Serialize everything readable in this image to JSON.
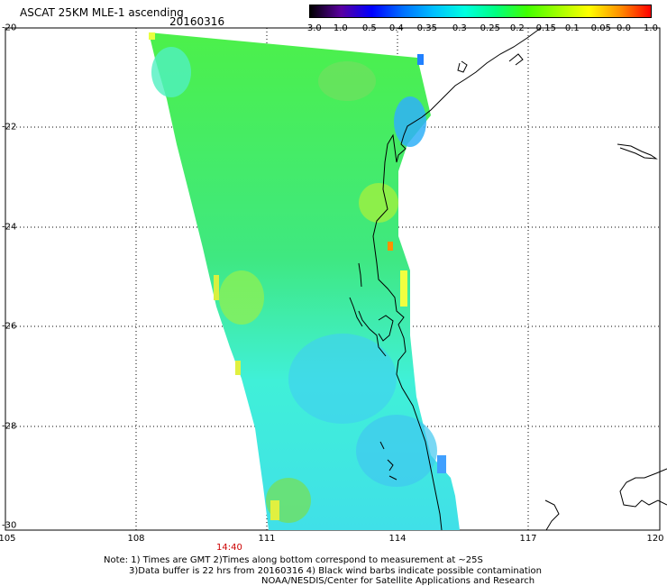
{
  "header": {
    "title": "ASCAT 25KM MLE-1 ascending",
    "date": "20160316"
  },
  "colorbar": {
    "ticks": [
      "-3.0",
      "-1.0",
      "-0.5",
      "-0.4",
      "-0.35",
      "-0.3",
      "-0.25",
      "-0.2",
      "-0.15",
      "-0.1",
      "-0.05",
      "0.0",
      "1.0"
    ],
    "colors": [
      "#000000",
      "#5a00a0",
      "#0000ff",
      "#0070ff",
      "#00c0ff",
      "#00ffe0",
      "#00ff80",
      "#40ff00",
      "#a0ff00",
      "#ffff00",
      "#ff9000",
      "#ff0000"
    ]
  },
  "map": {
    "lat_labels": [
      "-20",
      "-22",
      "-24",
      "-26",
      "-28",
      "-30"
    ],
    "lon_labels": [
      "105",
      "108",
      "111",
      "114",
      "117",
      "120"
    ],
    "time_label": "14:40",
    "lat_range": [
      -30,
      -20
    ],
    "lon_range": [
      105,
      120
    ]
  },
  "notes": {
    "line1": "Note: 1) Times are GMT 2)Times along bottom correspond to measurement at ~25S",
    "line2": "3)Data buffer is 22 hrs from 20160316 4) Black wind barbs indicate possible contamination",
    "line3": "NOAA/NESDIS/Center for Satellite Applications and Research"
  }
}
